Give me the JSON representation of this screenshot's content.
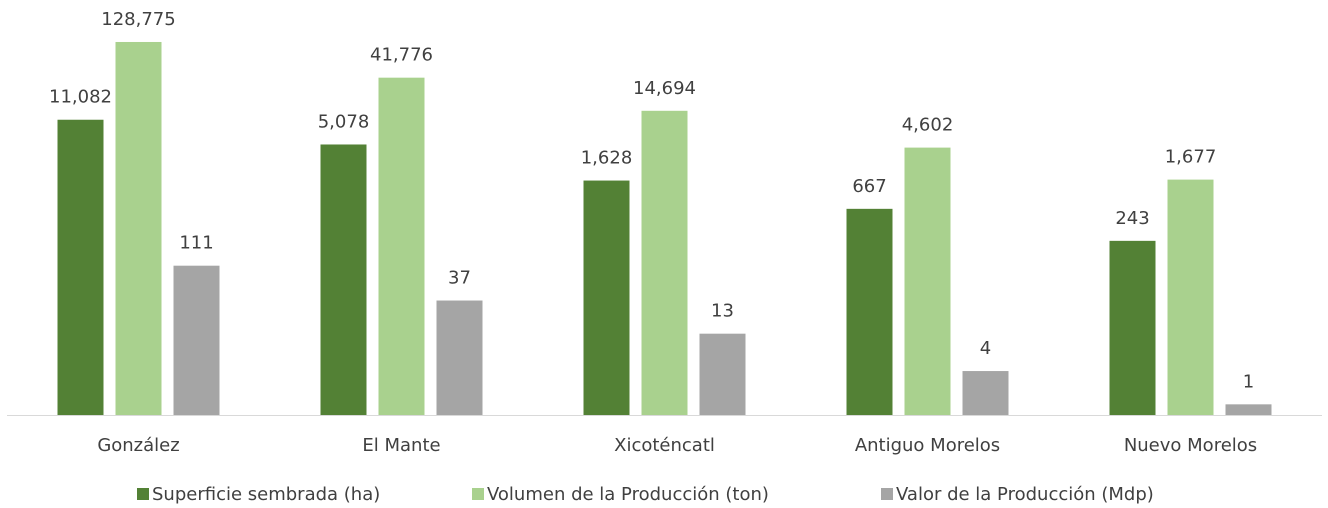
{
  "chart_data": {
    "type": "bar",
    "categories": [
      "González",
      "El Mante",
      "Xicoténcatl",
      "Antiguo Morelos",
      "Nuevo Morelos"
    ],
    "series": [
      {
        "name": "Superficie sembrada (ha)",
        "color": "#538135",
        "values": [
          11082,
          5078,
          1628,
          667,
          243
        ],
        "value_labels": [
          "11,082",
          "5,078",
          "1,628",
          "667",
          "243"
        ]
      },
      {
        "name": "Volumen de la Producción (ton)",
        "color": "#a9d18e",
        "values": [
          128775,
          41776,
          14694,
          4602,
          1677
        ],
        "value_labels": [
          "128,775",
          "41,776",
          "14,694",
          "4,602",
          "1,677"
        ]
      },
      {
        "name": "Valor de la Producción (Mdp)",
        "color": "#a5a5a5",
        "values": [
          111,
          37,
          13,
          4,
          1.4
        ],
        "value_labels": [
          "111",
          "37",
          "13",
          "4",
          "1"
        ]
      }
    ],
    "ylim": [
      1,
      1000000
    ],
    "log_scale": true,
    "grid": false,
    "legend": "bottom"
  }
}
